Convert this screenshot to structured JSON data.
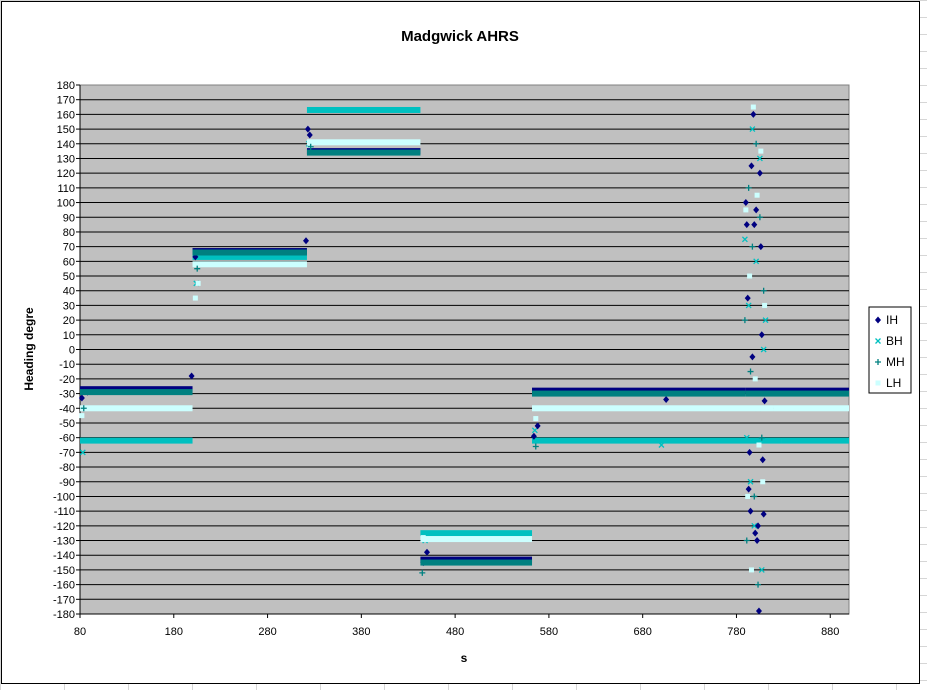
{
  "chart_data": {
    "type": "scatter",
    "title": "Madgwick AHRS",
    "xlabel": "s",
    "ylabel": "Heading degre",
    "xlim": [
      80,
      900
    ],
    "ylim": [
      -180,
      180
    ],
    "x_ticks": [
      80,
      180,
      280,
      380,
      480,
      580,
      680,
      780,
      880
    ],
    "y_ticks": [
      180,
      170,
      160,
      150,
      140,
      130,
      120,
      110,
      100,
      90,
      80,
      70,
      60,
      50,
      40,
      30,
      20,
      10,
      0,
      -10,
      -20,
      -30,
      -40,
      -50,
      -60,
      -70,
      -80,
      -90,
      -100,
      -110,
      -120,
      -130,
      -140,
      -150,
      -160,
      -170,
      -180
    ],
    "plot_background": "#c0c0c0",
    "grid": "horizontal",
    "legend_position": "right",
    "series": [
      {
        "name": "IH",
        "marker": "diamond",
        "color": "#000080",
        "segments": [
          [
            80,
            200,
            -27
          ],
          [
            200,
            322,
            67
          ],
          [
            322,
            443,
            135
          ],
          [
            443,
            562,
            -143
          ],
          [
            562,
            790,
            -28
          ],
          [
            790,
            900,
            -28
          ]
        ],
        "points": [
          [
            82,
            -33
          ],
          [
            88,
            -29
          ],
          [
            199,
            -18
          ],
          [
            203,
            63
          ],
          [
            321,
            74
          ],
          [
            323,
            150
          ],
          [
            325,
            146
          ],
          [
            446,
            -145
          ],
          [
            450,
            -138
          ],
          [
            564,
            -59
          ],
          [
            568,
            -52
          ],
          [
            705,
            -34
          ],
          [
            790,
            100
          ],
          [
            791,
            85
          ],
          [
            792,
            35
          ],
          [
            793,
            -95
          ],
          [
            794,
            -70
          ],
          [
            795,
            -110
          ],
          [
            796,
            125
          ],
          [
            797,
            -5
          ],
          [
            798,
            160
          ],
          [
            799,
            85
          ],
          [
            800,
            -125
          ],
          [
            801,
            95
          ],
          [
            802,
            -130
          ],
          [
            803,
            -120
          ],
          [
            804,
            -178
          ],
          [
            805,
            120
          ],
          [
            806,
            70
          ],
          [
            807,
            10
          ],
          [
            808,
            -75
          ],
          [
            809,
            -112
          ],
          [
            810,
            -35
          ]
        ]
      },
      {
        "name": "BH",
        "marker": "x",
        "color": "#00c0c0",
        "segments": [
          [
            80,
            200,
            -62
          ],
          [
            200,
            322,
            63
          ],
          [
            322,
            443,
            163
          ],
          [
            443,
            562,
            -125
          ],
          [
            562,
            828,
            -62
          ],
          [
            828,
            900,
            -62
          ]
        ],
        "points": [
          [
            83,
            -70
          ],
          [
            204,
            45
          ],
          [
            324,
            140
          ],
          [
            448,
            -130
          ],
          [
            565,
            -55
          ],
          [
            700,
            -65
          ],
          [
            789,
            75
          ],
          [
            791,
            -60
          ],
          [
            793,
            30
          ],
          [
            795,
            -90
          ],
          [
            797,
            150
          ],
          [
            799,
            -120
          ],
          [
            801,
            60
          ],
          [
            803,
            -40
          ],
          [
            805,
            130
          ],
          [
            807,
            -150
          ],
          [
            809,
            0
          ],
          [
            811,
            20
          ]
        ]
      },
      {
        "name": "MH",
        "marker": "plus",
        "color": "#008080",
        "segments": [
          [
            80,
            200,
            -29
          ],
          [
            200,
            322,
            66
          ],
          [
            322,
            443,
            134
          ],
          [
            443,
            562,
            -145
          ],
          [
            562,
            790,
            -30
          ],
          [
            790,
            900,
            -30
          ]
        ],
        "points": [
          [
            84,
            -40
          ],
          [
            205,
            55
          ],
          [
            326,
            138
          ],
          [
            445,
            -152
          ],
          [
            566,
            -66
          ],
          [
            789,
            20
          ],
          [
            791,
            -130
          ],
          [
            793,
            110
          ],
          [
            795,
            -15
          ],
          [
            797,
            70
          ],
          [
            799,
            -100
          ],
          [
            801,
            140
          ],
          [
            803,
            -160
          ],
          [
            805,
            90
          ],
          [
            807,
            -60
          ],
          [
            809,
            40
          ]
        ]
      },
      {
        "name": "LH",
        "marker": "square",
        "color": "#ccffff",
        "segments": [
          [
            80,
            200,
            -40
          ],
          [
            200,
            322,
            58
          ],
          [
            322,
            443,
            141
          ],
          [
            443,
            562,
            -129
          ],
          [
            562,
            820,
            -40
          ],
          [
            820,
            900,
            -40
          ]
        ],
        "points": [
          [
            82,
            -45
          ],
          [
            203,
            35
          ],
          [
            206,
            45
          ],
          [
            325,
            137
          ],
          [
            446,
            -128
          ],
          [
            566,
            -47
          ],
          [
            790,
            95
          ],
          [
            792,
            -100
          ],
          [
            794,
            50
          ],
          [
            796,
            -150
          ],
          [
            798,
            165
          ],
          [
            800,
            -20
          ],
          [
            802,
            105
          ],
          [
            804,
            -65
          ],
          [
            806,
            135
          ],
          [
            808,
            -90
          ],
          [
            810,
            30
          ]
        ]
      }
    ]
  }
}
